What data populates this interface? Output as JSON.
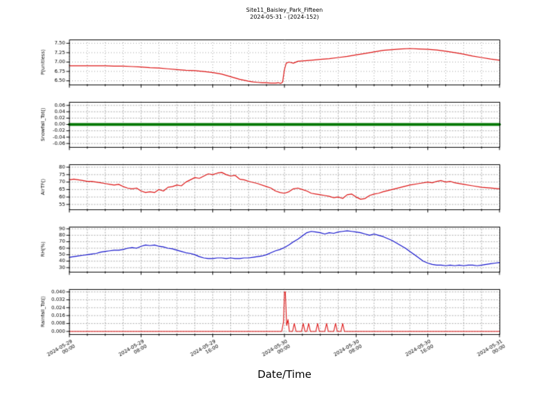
{
  "title": "Site11_Baisley_Park_Fifteen",
  "subtitle": "2024-05-31 - (2024-152)",
  "x_axis": {
    "label": "Date/Time",
    "lim_hours": [
      0,
      48
    ],
    "major_tick_hours": [
      0,
      8,
      16,
      24,
      32,
      40,
      48
    ],
    "minor_tick_step_hours": 2,
    "tick_labels": [
      "2024-05-29\n00:00",
      "2024-05-29\n08:00",
      "2024-05-29\n16:00",
      "2024-05-30\n00:00",
      "2024-05-30\n08:00",
      "2024-05-30\n16:00",
      "2024-05-31\n00:00"
    ]
  },
  "style": {
    "grid_color": "#777777",
    "frame_color": "#000000",
    "background": "#ffffff",
    "red": "#dd1111",
    "green": "#007700",
    "blue": "#1111cc"
  },
  "chart_data": [
    {
      "type": "line",
      "ylabel": "P(unitless)",
      "color": "#dd1111",
      "line_width": 1.2,
      "ylim": [
        6.4,
        7.6
      ],
      "yticks": [
        6.5,
        6.75,
        7.0,
        7.25,
        7.5
      ],
      "ytick_labels": [
        "6.50",
        "6.75",
        "7.00",
        "7.25",
        "7.50"
      ],
      "points": [
        [
          0,
          6.9
        ],
        [
          2,
          6.9
        ],
        [
          4,
          6.9
        ],
        [
          5,
          6.89
        ],
        [
          6,
          6.89
        ],
        [
          7,
          6.88
        ],
        [
          8,
          6.87
        ],
        [
          9,
          6.85
        ],
        [
          10,
          6.84
        ],
        [
          11,
          6.82
        ],
        [
          12,
          6.8
        ],
        [
          13,
          6.78
        ],
        [
          14,
          6.77
        ],
        [
          15,
          6.75
        ],
        [
          16,
          6.72
        ],
        [
          17,
          6.68
        ],
        [
          18,
          6.61
        ],
        [
          19,
          6.54
        ],
        [
          20,
          6.49
        ],
        [
          20.5,
          6.47
        ],
        [
          21,
          6.46
        ],
        [
          21.5,
          6.45
        ],
        [
          22,
          6.45
        ],
        [
          22.5,
          6.44
        ],
        [
          23,
          6.44
        ],
        [
          23.3,
          6.45
        ],
        [
          23.6,
          6.43
        ],
        [
          23.8,
          6.47
        ],
        [
          24,
          6.8
        ],
        [
          24.2,
          6.97
        ],
        [
          24.5,
          7.0
        ],
        [
          25,
          6.97
        ],
        [
          25.5,
          7.02
        ],
        [
          26,
          7.03
        ],
        [
          27,
          7.05
        ],
        [
          28,
          7.07
        ],
        [
          29,
          7.09
        ],
        [
          30,
          7.12
        ],
        [
          31,
          7.15
        ],
        [
          32,
          7.19
        ],
        [
          33,
          7.23
        ],
        [
          34,
          7.27
        ],
        [
          35,
          7.31
        ],
        [
          36,
          7.33
        ],
        [
          37,
          7.35
        ],
        [
          38,
          7.36
        ],
        [
          39,
          7.35
        ],
        [
          40,
          7.34
        ],
        [
          41,
          7.32
        ],
        [
          42,
          7.29
        ],
        [
          43,
          7.25
        ],
        [
          44,
          7.21
        ],
        [
          45,
          7.16
        ],
        [
          46,
          7.12
        ],
        [
          47,
          7.08
        ],
        [
          48,
          7.05
        ]
      ]
    },
    {
      "type": "line",
      "ylabel": "Snowfall_Tot()",
      "color": "#007700",
      "line_width": 4,
      "ylim": [
        -0.071,
        0.071
      ],
      "yticks": [
        -0.06,
        -0.04,
        -0.02,
        0.0,
        0.02,
        0.04,
        0.06
      ],
      "ytick_labels": [
        "-0.06",
        "-0.04",
        "-0.02",
        "0.00",
        "0.02",
        "0.04",
        "0.06"
      ],
      "points": [
        [
          0,
          0
        ],
        [
          48,
          0
        ]
      ]
    },
    {
      "type": "line",
      "ylabel": "AirTF()",
      "color": "#dd1111",
      "line_width": 1.2,
      "ylim": [
        51.7,
        81.9
      ],
      "yticks": [
        55,
        60,
        65,
        70,
        75,
        80
      ],
      "ytick_labels": [
        "55",
        "60",
        "65",
        "70",
        "75",
        "80"
      ],
      "points": [
        [
          0,
          71.5
        ],
        [
          0.5,
          72
        ],
        [
          1,
          71.5
        ],
        [
          1.5,
          71
        ],
        [
          2,
          70.5
        ],
        [
          2.5,
          70.5
        ],
        [
          3,
          70
        ],
        [
          3.5,
          69.5
        ],
        [
          4,
          69
        ],
        [
          4.5,
          68.5
        ],
        [
          5,
          68
        ],
        [
          5.5,
          68.5
        ],
        [
          6,
          67
        ],
        [
          6.5,
          66
        ],
        [
          7,
          65.5
        ],
        [
          7.5,
          66
        ],
        [
          8,
          64
        ],
        [
          8.5,
          63
        ],
        [
          9,
          63.5
        ],
        [
          9.5,
          63
        ],
        [
          10,
          65
        ],
        [
          10.5,
          64
        ],
        [
          11,
          66.5
        ],
        [
          11.5,
          67
        ],
        [
          12,
          68
        ],
        [
          12.5,
          67.5
        ],
        [
          13,
          70
        ],
        [
          13.5,
          71.5
        ],
        [
          14,
          73
        ],
        [
          14.5,
          72.5
        ],
        [
          15,
          74
        ],
        [
          15.5,
          75.5
        ],
        [
          16,
          75
        ],
        [
          16.5,
          76
        ],
        [
          17,
          76.5
        ],
        [
          17.5,
          75
        ],
        [
          18,
          74
        ],
        [
          18.5,
          74.5
        ],
        [
          19,
          72
        ],
        [
          19.5,
          71.5
        ],
        [
          20,
          70.5
        ],
        [
          21,
          69
        ],
        [
          22,
          67
        ],
        [
          22.5,
          66
        ],
        [
          23,
          64
        ],
        [
          23.5,
          63
        ],
        [
          24,
          62.5
        ],
        [
          24.5,
          63.5
        ],
        [
          25,
          65.5
        ],
        [
          25.5,
          66
        ],
        [
          26,
          65
        ],
        [
          26.5,
          64
        ],
        [
          27,
          62.5
        ],
        [
          27.5,
          62
        ],
        [
          28,
          61.5
        ],
        [
          28.5,
          61
        ],
        [
          29,
          60.5
        ],
        [
          29.5,
          59.5
        ],
        [
          30,
          60
        ],
        [
          30.5,
          59
        ],
        [
          31,
          61.5
        ],
        [
          31.5,
          62
        ],
        [
          32,
          60
        ],
        [
          32.5,
          58.5
        ],
        [
          33,
          59
        ],
        [
          33.5,
          61
        ],
        [
          34,
          62
        ],
        [
          34.5,
          62.5
        ],
        [
          35,
          63.5
        ],
        [
          36,
          65
        ],
        [
          37,
          66.5
        ],
        [
          38,
          68
        ],
        [
          39,
          69
        ],
        [
          40,
          70
        ],
        [
          40.5,
          69.5
        ],
        [
          41,
          70.5
        ],
        [
          41.5,
          71
        ],
        [
          42,
          70
        ],
        [
          42.5,
          70.5
        ],
        [
          43,
          69.5
        ],
        [
          44,
          68.5
        ],
        [
          45,
          67.5
        ],
        [
          46,
          66.5
        ],
        [
          47,
          66
        ],
        [
          48,
          65.5
        ]
      ]
    },
    {
      "type": "line",
      "ylabel": "RH(%)",
      "color": "#1111cc",
      "line_width": 1.2,
      "ylim": [
        23.6,
        93.2
      ],
      "yticks": [
        30,
        40,
        50,
        60,
        70,
        80,
        90
      ],
      "ytick_labels": [
        "30",
        "40",
        "50",
        "60",
        "70",
        "80",
        "90"
      ],
      "points": [
        [
          0,
          46
        ],
        [
          0.5,
          47
        ],
        [
          1,
          48
        ],
        [
          1.5,
          49
        ],
        [
          2,
          50
        ],
        [
          2.5,
          51
        ],
        [
          3,
          52
        ],
        [
          3.5,
          54
        ],
        [
          4,
          55
        ],
        [
          4.5,
          56
        ],
        [
          5,
          57
        ],
        [
          5.5,
          57
        ],
        [
          6,
          58
        ],
        [
          6.5,
          60
        ],
        [
          7,
          61
        ],
        [
          7.5,
          60
        ],
        [
          8,
          63
        ],
        [
          8.5,
          65
        ],
        [
          9,
          64
        ],
        [
          9.5,
          65
        ],
        [
          10,
          63
        ],
        [
          10.5,
          62
        ],
        [
          11,
          60
        ],
        [
          11.5,
          59
        ],
        [
          12,
          57
        ],
        [
          12.5,
          55
        ],
        [
          13,
          53
        ],
        [
          13.5,
          52
        ],
        [
          14,
          50
        ],
        [
          14.5,
          47
        ],
        [
          15,
          45
        ],
        [
          15.5,
          44
        ],
        [
          16,
          44
        ],
        [
          16.5,
          45
        ],
        [
          17,
          45
        ],
        [
          17.5,
          44
        ],
        [
          18,
          45
        ],
        [
          18.5,
          44
        ],
        [
          19,
          44
        ],
        [
          19.5,
          45
        ],
        [
          20,
          45
        ],
        [
          20.5,
          46
        ],
        [
          21,
          47
        ],
        [
          21.5,
          48
        ],
        [
          22,
          50
        ],
        [
          22.5,
          53
        ],
        [
          23,
          56
        ],
        [
          23.5,
          58
        ],
        [
          24,
          61
        ],
        [
          24.5,
          65
        ],
        [
          25,
          70
        ],
        [
          25.5,
          74
        ],
        [
          26,
          79
        ],
        [
          26.5,
          84
        ],
        [
          27,
          86
        ],
        [
          27.5,
          85
        ],
        [
          28,
          84
        ],
        [
          28.5,
          82
        ],
        [
          29,
          84
        ],
        [
          29.5,
          83
        ],
        [
          30,
          85
        ],
        [
          30.5,
          86
        ],
        [
          31,
          87
        ],
        [
          31.5,
          86
        ],
        [
          32,
          85
        ],
        [
          32.5,
          84
        ],
        [
          33,
          82
        ],
        [
          33.5,
          80
        ],
        [
          34,
          82
        ],
        [
          34.5,
          80
        ],
        [
          35,
          78
        ],
        [
          35.5,
          75
        ],
        [
          36,
          72
        ],
        [
          36.5,
          68
        ],
        [
          37,
          64
        ],
        [
          37.5,
          60
        ],
        [
          38,
          55
        ],
        [
          38.5,
          50
        ],
        [
          39,
          45
        ],
        [
          39.5,
          40
        ],
        [
          40,
          37
        ],
        [
          40.5,
          35
        ],
        [
          41,
          34
        ],
        [
          41.5,
          34
        ],
        [
          42,
          33
        ],
        [
          42.5,
          34
        ],
        [
          43,
          33
        ],
        [
          43.5,
          34
        ],
        [
          44,
          33
        ],
        [
          44.5,
          34
        ],
        [
          45,
          34
        ],
        [
          45.5,
          33
        ],
        [
          46,
          34
        ],
        [
          46.5,
          35
        ],
        [
          47,
          36
        ],
        [
          47.5,
          37
        ],
        [
          48,
          38
        ]
      ]
    },
    {
      "type": "line",
      "ylabel": "Rainfall_Tot()",
      "color": "#dd1111",
      "line_width": 1.1,
      "ylim": [
        -0.0028,
        0.0428
      ],
      "yticks": [
        0.0,
        0.008,
        0.016,
        0.024,
        0.032,
        0.04
      ],
      "ytick_labels": [
        "0.000",
        "0.008",
        "0.016",
        "0.024",
        "0.032",
        "0.040"
      ],
      "points": [
        [
          0,
          0
        ],
        [
          23.7,
          0
        ],
        [
          23.9,
          0.01
        ],
        [
          24,
          0.04
        ],
        [
          24.1,
          0.04
        ],
        [
          24.25,
          0.006
        ],
        [
          24.4,
          0.012
        ],
        [
          24.55,
          0
        ],
        [
          24.9,
          0
        ],
        [
          25.1,
          0.008
        ],
        [
          25.3,
          0
        ],
        [
          25.9,
          0
        ],
        [
          26.1,
          0.008
        ],
        [
          26.3,
          0
        ],
        [
          26.5,
          0
        ],
        [
          26.7,
          0.008
        ],
        [
          26.9,
          0
        ],
        [
          27.5,
          0
        ],
        [
          27.7,
          0.008
        ],
        [
          27.9,
          0
        ],
        [
          28.5,
          0
        ],
        [
          28.7,
          0.008
        ],
        [
          28.9,
          0
        ],
        [
          29.5,
          0
        ],
        [
          29.7,
          0.008
        ],
        [
          29.9,
          0
        ],
        [
          30.3,
          0
        ],
        [
          30.5,
          0.008
        ],
        [
          30.7,
          0
        ],
        [
          48,
          0
        ]
      ]
    }
  ]
}
